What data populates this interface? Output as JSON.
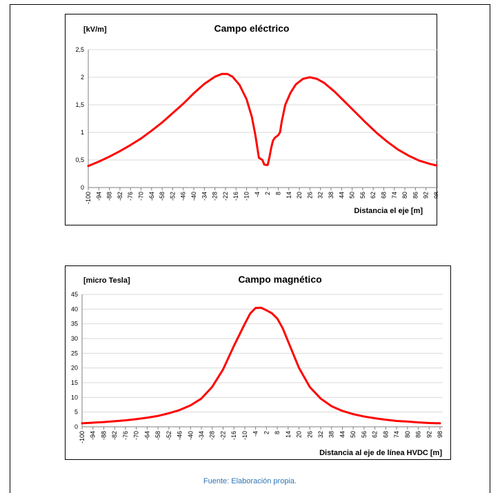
{
  "caption": {
    "source": "Fuente: Elaboración propia."
  },
  "chart_data": [
    {
      "type": "line",
      "title": "Campo eléctrico",
      "ylabel": "[kV/m]",
      "xlabel": "Distancia el eje [m]",
      "ylim": [
        0,
        2.5
      ],
      "xlim": [
        -100,
        98
      ],
      "yticks": [
        "0",
        "0,5",
        "1",
        "1,5",
        "2",
        "2,5"
      ],
      "yticks_values": [
        0,
        0.5,
        1,
        1.5,
        2,
        2.5
      ],
      "xticks": [
        -100,
        -94,
        -88,
        -82,
        -76,
        -70,
        -64,
        -58,
        -52,
        -46,
        -40,
        -34,
        -28,
        -22,
        -16,
        -10,
        -4,
        2,
        8,
        14,
        20,
        26,
        32,
        38,
        44,
        50,
        56,
        62,
        68,
        74,
        80,
        86,
        92,
        98
      ],
      "grid": true,
      "series": [
        {
          "color": "#ff0000",
          "x": [
            -100,
            -94,
            -88,
            -82,
            -76,
            -70,
            -64,
            -58,
            -52,
            -46,
            -40,
            -34,
            -28,
            -24,
            -21,
            -18,
            -14,
            -10,
            -7,
            -5,
            -3,
            -1,
            0,
            1,
            2,
            3,
            4,
            5,
            6,
            8,
            9,
            10,
            12,
            15,
            18,
            22,
            26,
            30,
            34,
            40,
            46,
            52,
            58,
            64,
            70,
            76,
            82,
            88,
            94,
            98
          ],
          "y": [
            0.39,
            0.47,
            0.56,
            0.66,
            0.77,
            0.89,
            1.03,
            1.18,
            1.35,
            1.52,
            1.71,
            1.88,
            2.01,
            2.06,
            2.06,
            2.01,
            1.86,
            1.6,
            1.28,
            0.95,
            0.54,
            0.5,
            0.42,
            0.41,
            0.41,
            0.55,
            0.72,
            0.85,
            0.9,
            0.95,
            1.0,
            1.2,
            1.5,
            1.72,
            1.87,
            1.97,
            2.0,
            1.97,
            1.9,
            1.74,
            1.55,
            1.36,
            1.17,
            0.99,
            0.83,
            0.69,
            0.58,
            0.49,
            0.43,
            0.4
          ]
        }
      ]
    },
    {
      "type": "line",
      "title": "Campo magnético",
      "ylabel": "[micro Tesla]",
      "xlabel": "Distancia al eje de línea HVDC [m]",
      "ylim": [
        0,
        45
      ],
      "xlim": [
        -100,
        98
      ],
      "yticks": [
        "0",
        "5",
        "10",
        "15",
        "20",
        "25",
        "30",
        "35",
        "40",
        "45"
      ],
      "yticks_values": [
        0,
        5,
        10,
        15,
        20,
        25,
        30,
        35,
        40,
        45
      ],
      "xticks": [
        -100,
        -94,
        -88,
        -82,
        -76,
        -70,
        -64,
        -58,
        -52,
        -46,
        -40,
        -34,
        -28,
        -22,
        -16,
        -10,
        -4,
        2,
        8,
        14,
        20,
        26,
        32,
        38,
        44,
        50,
        56,
        62,
        68,
        74,
        80,
        86,
        92,
        98
      ],
      "grid": true,
      "series": [
        {
          "color": "#ff0000",
          "x": [
            -100,
            -94,
            -88,
            -82,
            -76,
            -70,
            -64,
            -58,
            -52,
            -46,
            -40,
            -34,
            -28,
            -22,
            -16,
            -10,
            -7,
            -4,
            -1,
            2,
            5,
            8,
            11,
            14,
            17,
            20,
            26,
            32,
            38,
            44,
            50,
            56,
            62,
            68,
            74,
            80,
            86,
            92,
            98
          ],
          "y": [
            1.2,
            1.4,
            1.6,
            1.9,
            2.2,
            2.6,
            3.1,
            3.7,
            4.6,
            5.7,
            7.3,
            9.6,
            13.6,
            19.5,
            27.5,
            35.0,
            38.5,
            40.4,
            40.5,
            39.6,
            38.6,
            36.8,
            33.5,
            29.0,
            24.5,
            20.0,
            13.5,
            9.6,
            7.0,
            5.4,
            4.3,
            3.5,
            2.9,
            2.4,
            2.0,
            1.8,
            1.5,
            1.3,
            1.2
          ]
        }
      ]
    }
  ]
}
